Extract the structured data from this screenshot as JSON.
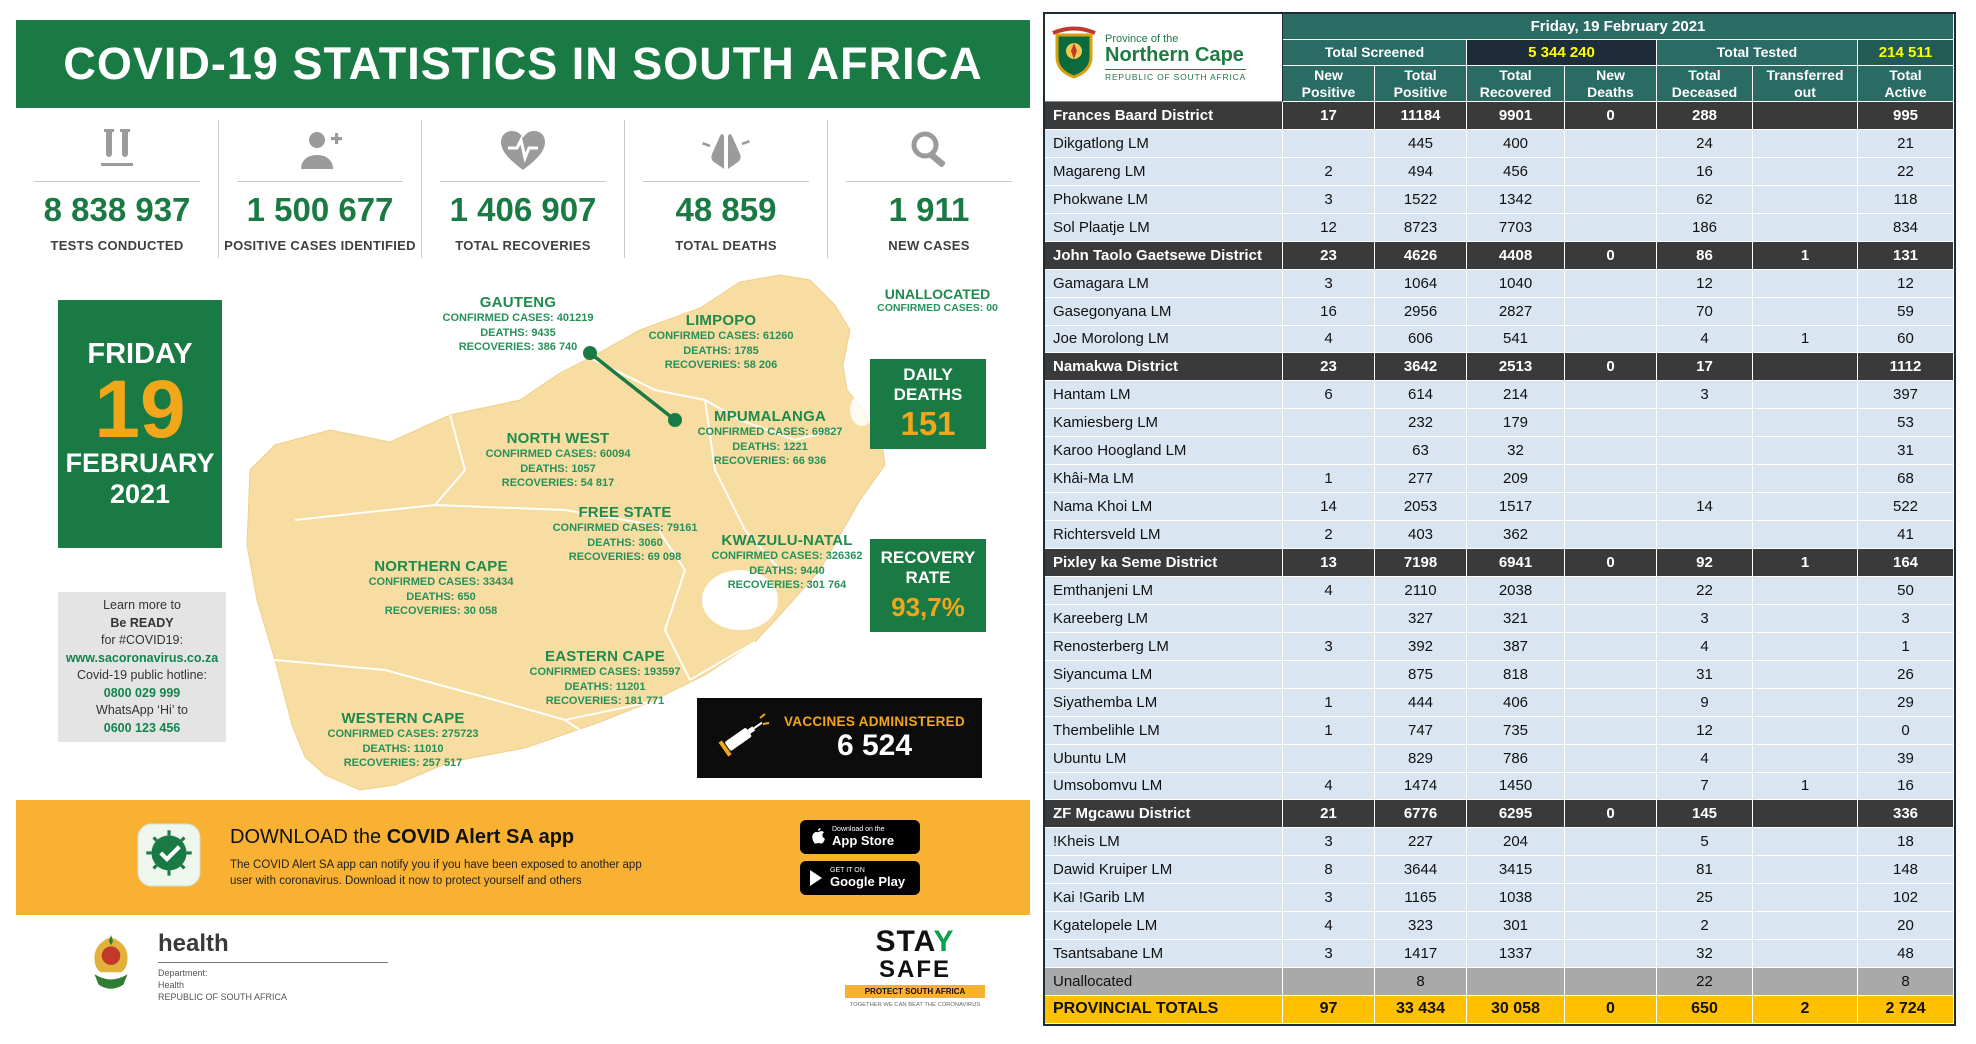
{
  "left_panel": {
    "title": "COVID-19 STATISTICS IN SOUTH AFRICA",
    "stats": [
      {
        "icon": "test-tubes-icon",
        "value": "8 838 937",
        "label": "TESTS CONDUCTED"
      },
      {
        "icon": "person-plus-icon",
        "value": "1 500 677",
        "label": "POSITIVE CASES IDENTIFIED"
      },
      {
        "icon": "heart-pulse-icon",
        "value": "1 406 907",
        "label": "TOTAL RECOVERIES"
      },
      {
        "icon": "praying-hands-icon",
        "value": "48 859",
        "label": "TOTAL DEATHS"
      },
      {
        "icon": "magnifier-icon",
        "value": "1 911",
        "label": "NEW CASES"
      }
    ],
    "date_card": {
      "day": "FRIDAY",
      "number": "19",
      "month": "FEBRUARY",
      "year": "2021"
    },
    "info_box": {
      "line1": "Learn more to",
      "line2": "Be READY",
      "line3": "for #COVID19:",
      "website": "www.sacoronavirus.co.za",
      "line4": "Covid-19 public hotline:",
      "hotline": "0800 029 999",
      "line5": "WhatsApp ‘Hi’ to",
      "whatsapp": "0600 123 456"
    },
    "provinces": [
      {
        "name": "GAUTENG",
        "confirmed": "CONFIRMED CASES: 401219",
        "deaths": "DEATHS: 9435",
        "recoveries": "RECOVERIES: 386 740"
      },
      {
        "name": "LIMPOPO",
        "confirmed": "CONFIRMED CASES: 61260",
        "deaths": "DEATHS: 1785",
        "recoveries": "RECOVERIES: 58 206"
      },
      {
        "name": "MPUMALANGA",
        "confirmed": "CONFIRMED CASES: 69827",
        "deaths": "DEATHS: 1221",
        "recoveries": "RECOVERIES: 66 936"
      },
      {
        "name": "NORTH WEST",
        "confirmed": "CONFIRMED CASES: 60094",
        "deaths": "DEATHS: 1057",
        "recoveries": "RECOVERIES: 54 817"
      },
      {
        "name": "FREE STATE",
        "confirmed": "CONFIRMED CASES: 79161",
        "deaths": "DEATHS: 3060",
        "recoveries": "RECOVERIES: 69 098"
      },
      {
        "name": "KWAZULU-NATAL",
        "confirmed": "CONFIRMED CASES: 326362",
        "deaths": "DEATHS: 9440",
        "recoveries": "RECOVERIES: 301 764"
      },
      {
        "name": "NORTHERN CAPE",
        "confirmed": "CONFIRMED CASES: 33434",
        "deaths": "DEATHS: 650",
        "recoveries": "RECOVERIES: 30 058"
      },
      {
        "name": "EASTERN CAPE",
        "confirmed": "CONFIRMED CASES: 193597",
        "deaths": "DEATHS: 11201",
        "recoveries": "RECOVERIES: 181 771"
      },
      {
        "name": "WESTERN CAPE",
        "confirmed": "CONFIRMED CASES: 275723",
        "deaths": "DEATHS: 11010",
        "recoveries": "RECOVERIES: 257 517"
      }
    ],
    "unallocated": {
      "title": "UNALLOCATED",
      "cases": "CONFIRMED CASES: 00"
    },
    "daily_deaths": {
      "label": "DAILY DEATHS",
      "value": "151"
    },
    "recovery_rate": {
      "label": "RECOVERY RATE",
      "value": "93,7%"
    },
    "vaccines": {
      "label": "VACCINES ADMINISTERED",
      "value": "6 524"
    },
    "app_banner": {
      "title_prefix": "DOWNLOAD the ",
      "title_bold": "COVID Alert SA app",
      "description": "The COVID Alert SA app can notify you if you have been exposed to another app user with coronavirus. Download it now to protect yourself and others",
      "appstore_small": "Download on the",
      "appstore_big": "App Store",
      "googleplay_small": "GET IT ON",
      "googleplay_big": "Google Play"
    },
    "footer": {
      "health_title": "health",
      "health_sub1": "Department:",
      "health_sub2": "Health",
      "health_sub3": "REPUBLIC OF SOUTH AFRICA",
      "stay_prefix": "STA",
      "stay_y": "Y",
      "safe": "SAFE",
      "protect": "PROTECT SOUTH AFRICA",
      "together": "TOGETHER WE CAN BEAT THE CORONAVIRUS"
    }
  },
  "table": {
    "logo": {
      "line1": "Province of the",
      "line2": "Northern Cape",
      "line3": "REPUBLIC OF SOUTH AFRICA"
    },
    "date_header": "Friday, 19 February 2021",
    "screened_label": "Total Screened",
    "screened_value": "5 344 240",
    "tested_label": "Total Tested",
    "tested_value": "214 511",
    "columns": [
      "New\nPositive",
      "Total\nPositive",
      "Total\nRecovered",
      "New\nDeaths",
      "Total\nDeceased",
      "Transferred\nout",
      "Total\nActive"
    ],
    "rows": [
      {
        "name": "Frances Baard District",
        "type": "district",
        "values": [
          "17",
          "11184",
          "9901",
          "0",
          "288",
          "",
          "995"
        ]
      },
      {
        "name": "Dikgatlong LM",
        "type": "lm",
        "values": [
          "",
          "445",
          "400",
          "",
          "24",
          "",
          "21"
        ]
      },
      {
        "name": "Magareng LM",
        "type": "lm",
        "values": [
          "2",
          "494",
          "456",
          "",
          "16",
          "",
          "22"
        ]
      },
      {
        "name": "Phokwane LM",
        "type": "lm",
        "values": [
          "3",
          "1522",
          "1342",
          "",
          "62",
          "",
          "118"
        ]
      },
      {
        "name": "Sol Plaatje LM",
        "type": "lm",
        "values": [
          "12",
          "8723",
          "7703",
          "",
          "186",
          "",
          "834"
        ]
      },
      {
        "name": "John Taolo Gaetsewe District",
        "type": "district",
        "values": [
          "23",
          "4626",
          "4408",
          "0",
          "86",
          "1",
          "131"
        ]
      },
      {
        "name": "Gamagara LM",
        "type": "lm",
        "values": [
          "3",
          "1064",
          "1040",
          "",
          "12",
          "",
          "12"
        ]
      },
      {
        "name": "Gasegonyana LM",
        "type": "lm",
        "values": [
          "16",
          "2956",
          "2827",
          "",
          "70",
          "",
          "59"
        ]
      },
      {
        "name": "Joe Morolong LM",
        "type": "lm",
        "values": [
          "4",
          "606",
          "541",
          "",
          "4",
          "1",
          "60"
        ]
      },
      {
        "name": "Namakwa District",
        "type": "district",
        "values": [
          "23",
          "3642",
          "2513",
          "0",
          "17",
          "",
          "1112"
        ]
      },
      {
        "name": "Hantam LM",
        "type": "lm",
        "values": [
          "6",
          "614",
          "214",
          "",
          "3",
          "",
          "397"
        ]
      },
      {
        "name": "Kamiesberg LM",
        "type": "lm",
        "values": [
          "",
          "232",
          "179",
          "",
          "",
          "",
          "53"
        ]
      },
      {
        "name": "Karoo Hoogland LM",
        "type": "lm",
        "values": [
          "",
          "63",
          "32",
          "",
          "",
          "",
          "31"
        ]
      },
      {
        "name": "Khâi-Ma LM",
        "type": "lm",
        "values": [
          "1",
          "277",
          "209",
          "",
          "",
          "",
          "68"
        ]
      },
      {
        "name": "Nama Khoi LM",
        "type": "lm",
        "values": [
          "14",
          "2053",
          "1517",
          "",
          "14",
          "",
          "522"
        ]
      },
      {
        "name": "Richtersveld LM",
        "type": "lm",
        "values": [
          "2",
          "403",
          "362",
          "",
          "",
          "",
          "41"
        ]
      },
      {
        "name": "Pixley ka Seme District",
        "type": "district",
        "values": [
          "13",
          "7198",
          "6941",
          "0",
          "92",
          "1",
          "164"
        ]
      },
      {
        "name": "Emthanjeni LM",
        "type": "lm",
        "values": [
          "4",
          "2110",
          "2038",
          "",
          "22",
          "",
          "50"
        ]
      },
      {
        "name": "Kareeberg LM",
        "type": "lm",
        "values": [
          "",
          "327",
          "321",
          "",
          "3",
          "",
          "3"
        ]
      },
      {
        "name": "Renosterberg LM",
        "type": "lm",
        "values": [
          "3",
          "392",
          "387",
          "",
          "4",
          "",
          "1"
        ]
      },
      {
        "name": "Siyancuma LM",
        "type": "lm",
        "values": [
          "",
          "875",
          "818",
          "",
          "31",
          "",
          "26"
        ]
      },
      {
        "name": "Siyathemba LM",
        "type": "lm",
        "values": [
          "1",
          "444",
          "406",
          "",
          "9",
          "",
          "29"
        ]
      },
      {
        "name": "Thembelihle LM",
        "type": "lm",
        "values": [
          "1",
          "747",
          "735",
          "",
          "12",
          "",
          "0"
        ]
      },
      {
        "name": "Ubuntu LM",
        "type": "lm",
        "values": [
          "",
          "829",
          "786",
          "",
          "4",
          "",
          "39"
        ]
      },
      {
        "name": "Umsobomvu LM",
        "type": "lm",
        "values": [
          "4",
          "1474",
          "1450",
          "",
          "7",
          "1",
          "16"
        ]
      },
      {
        "name": "ZF Mgcawu District",
        "type": "district",
        "values": [
          "21",
          "6776",
          "6295",
          "0",
          "145",
          "",
          "336"
        ]
      },
      {
        "name": "!Kheis LM",
        "type": "lm",
        "values": [
          "3",
          "227",
          "204",
          "",
          "5",
          "",
          "18"
        ]
      },
      {
        "name": "Dawid Kruiper LM",
        "type": "lm",
        "values": [
          "8",
          "3644",
          "3415",
          "",
          "81",
          "",
          "148"
        ]
      },
      {
        "name": "Kai !Garib LM",
        "type": "lm",
        "values": [
          "3",
          "1165",
          "1038",
          "",
          "25",
          "",
          "102"
        ]
      },
      {
        "name": "Kgatelopele LM",
        "type": "lm",
        "values": [
          "4",
          "323",
          "301",
          "",
          "2",
          "",
          "20"
        ]
      },
      {
        "name": "Tsantsabane LM",
        "type": "lm",
        "values": [
          "3",
          "1417",
          "1337",
          "",
          "32",
          "",
          "48"
        ]
      },
      {
        "name": "Unallocated",
        "type": "unallocated",
        "values": [
          "",
          "8",
          "",
          "",
          "22",
          "",
          "8"
        ]
      },
      {
        "name": "PROVINCIAL TOTALS",
        "type": "totals",
        "values": [
          "97",
          "33 434",
          "30 058",
          "0",
          "650",
          "2",
          "2 724"
        ]
      }
    ]
  },
  "colors": {
    "green": "#1a7a44",
    "gold": "#f2a71b",
    "orange": "#f8b133",
    "teal": "#2a6b64",
    "row_blue": "#d9e5f1",
    "district_gray": "#3a3a3a",
    "totals_yellow": "#ffc000",
    "map_tan": "#f7dda2"
  }
}
